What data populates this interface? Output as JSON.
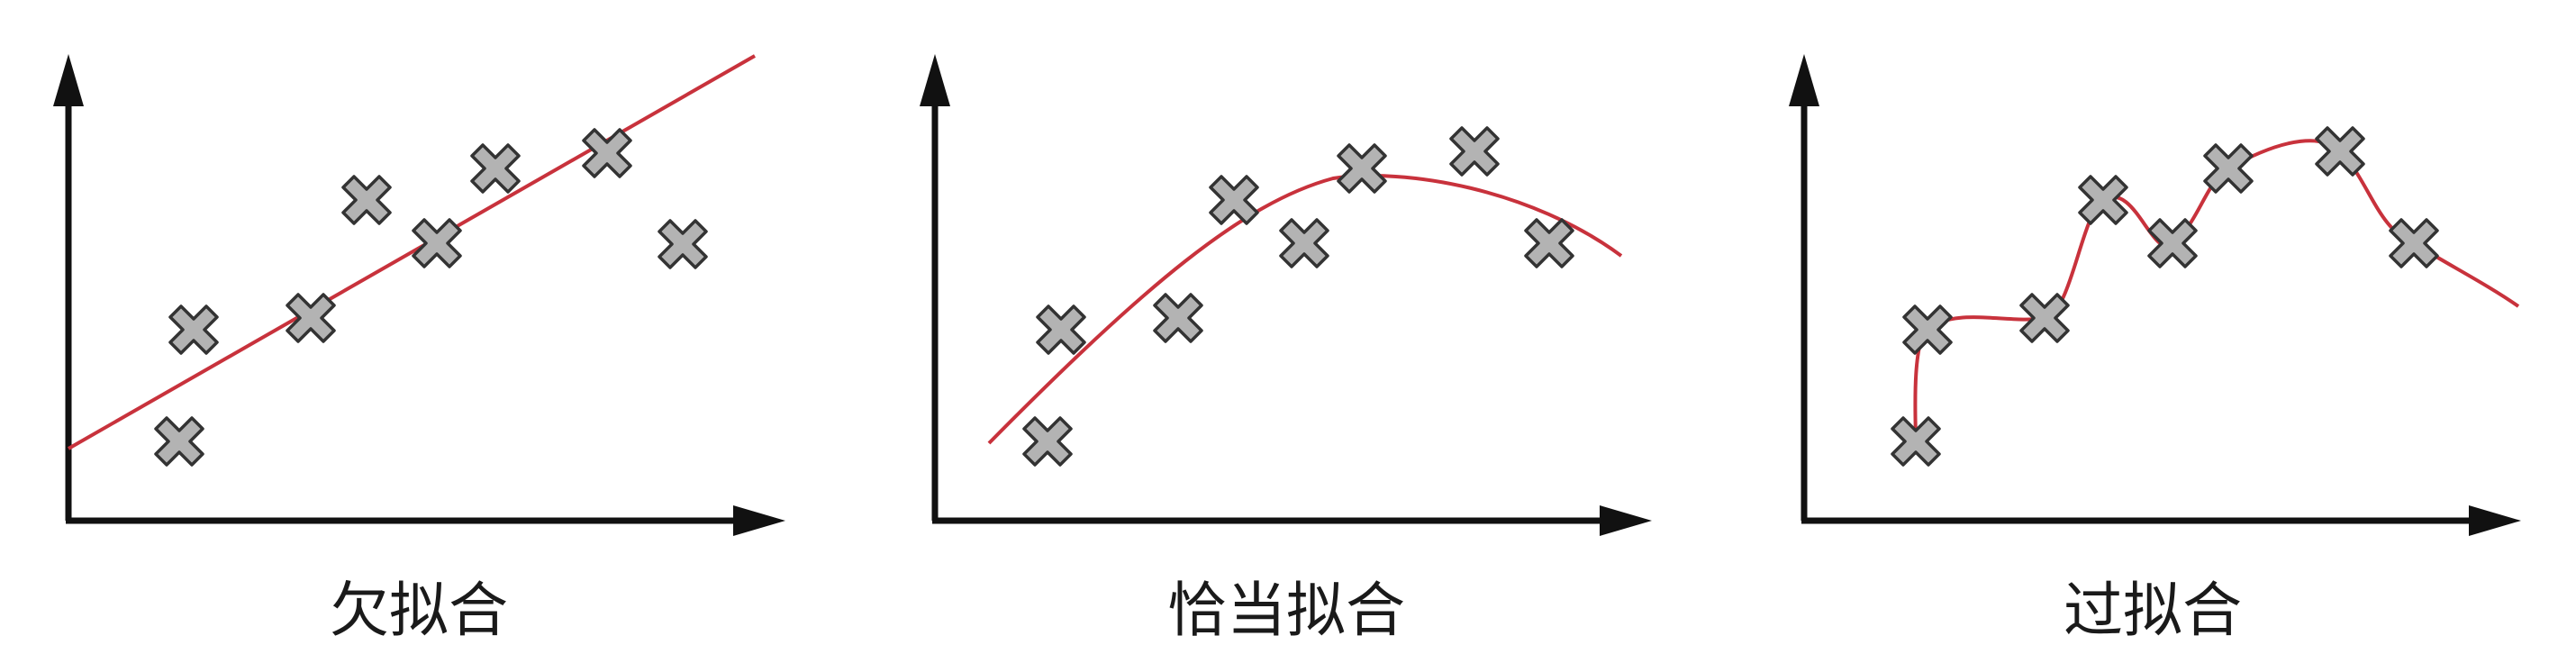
{
  "panels": [
    {
      "caption": "欠拟合",
      "fit": "linear",
      "curve_color": "#c8323c",
      "points_style": {
        "fill": "#b3b3b3",
        "stroke": "#333333"
      }
    },
    {
      "caption": "恰当拟合",
      "fit": "quadratic",
      "curve_color": "#c8323c",
      "points_style": {
        "fill": "#b3b3b3",
        "stroke": "#333333"
      }
    },
    {
      "caption": "过拟合",
      "fit": "interpolating",
      "curve_color": "#c8323c",
      "points_style": {
        "fill": "#b3b3b3",
        "stroke": "#333333"
      }
    }
  ]
}
